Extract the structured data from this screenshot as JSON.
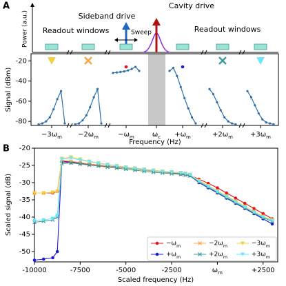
{
  "chart_data": [
    {
      "type": "segmented",
      "panel_label": "A",
      "schematic_labels": {
        "y_label": "Power (a.u.)",
        "readout_left": "Readout windows",
        "sideband": "Sideband drive",
        "cavity": "Cavity drive",
        "sweep": "Sweep",
        "readout_right": "Readout windows"
      },
      "y_label": "Signal (dBm)",
      "x_label": "Frequency (Hz)",
      "categories": [
        "−3ωm",
        "−2ωm",
        "−ωm",
        "ωc",
        "+ωm",
        "+2ωm",
        "+3ωm"
      ],
      "traces": [
        [
          -83,
          -82,
          -80,
          -76,
          -68,
          -58,
          -50,
          -82
        ],
        [
          -83,
          -82,
          -79,
          -74,
          -66,
          -56,
          -48,
          -82
        ],
        [
          -32,
          -31.5,
          -31,
          -30.5,
          -29.5,
          -28,
          -26,
          -30
        ],
        null,
        [
          -30,
          -27,
          -35,
          -46,
          -57,
          -67,
          -76,
          -82
        ],
        [
          -48,
          -53,
          -61,
          -69,
          -76,
          -80,
          -82,
          -83
        ],
        [
          -50,
          -56,
          -64,
          -72,
          -78,
          -81,
          -82,
          -83
        ]
      ],
      "trace_color": "#2f6ea8",
      "ylim": [
        -84,
        -13
      ],
      "yticks": [
        -20,
        -40,
        -60,
        -80
      ]
    },
    {
      "type": "line",
      "panel_label": "B",
      "y_label": "Scaled signal (dB)",
      "x_label": "Scaled frequency (Hz)",
      "x": [
        -10000,
        -9500,
        -9000,
        -8750,
        -8500,
        -8000,
        -7500,
        -7000,
        -6500,
        -6000,
        -5500,
        -5000,
        -4500,
        -4000,
        -3500,
        -3000,
        -2500,
        -2000,
        -1750,
        -1500,
        -1000,
        -500,
        0,
        500,
        1000,
        1500,
        2000,
        2500,
        3000
      ],
      "series": [
        {
          "name": "−ωm",
          "color": "#e8141b",
          "marker": "o",
          "values": [
            -33,
            -33,
            -33,
            -32.5,
            -24,
            -24.2,
            -24.5,
            -24.8,
            -25,
            -25.3,
            -25.5,
            -25.8,
            -26,
            -26.3,
            -26.6,
            -26.9,
            -27.2,
            -27.5,
            -27.7,
            -27.9,
            -29,
            -30.2,
            -31.5,
            -33,
            -34.5,
            -36,
            -37.5,
            -39,
            -40.5
          ]
        },
        {
          "name": "+ωm",
          "color": "#1c1cd6",
          "marker": "o",
          "values": [
            -52.5,
            -52.2,
            -51.8,
            -50,
            -23.8,
            -24,
            -24.3,
            -24.6,
            -24.9,
            -25.2,
            -25.4,
            -25.7,
            -26,
            -26.3,
            -26.6,
            -26.9,
            -27.1,
            -27.3,
            -27.6,
            -28,
            -30,
            -31.5,
            -33,
            -34.5,
            -36,
            -37.5,
            -39,
            -40.5,
            -42
          ]
        },
        {
          "name": "−2ωm",
          "color": "#f7a541",
          "marker": "x",
          "values": [
            -33,
            -33,
            -32.8,
            -32.5,
            -23.5,
            -23.8,
            -24.2,
            -24.6,
            -24.9,
            -25.2,
            -25.5,
            -25.8,
            -26.1,
            -26.4,
            -26.7,
            -26.9,
            -27.1,
            -27.3,
            -27.5,
            -27.8,
            -29.5,
            -31,
            -32.5,
            -34,
            -35.5,
            -37,
            -38.5,
            -40,
            -41
          ]
        },
        {
          "name": "+2ωm",
          "color": "#3a9c9a",
          "marker": "x",
          "values": [
            -41.5,
            -41.2,
            -40.8,
            -40,
            -24.5,
            -24.3,
            -24.6,
            -24.9,
            -25.2,
            -25.5,
            -25.8,
            -26.1,
            -26.4,
            -26.7,
            -27,
            -27.2,
            -27.4,
            -27.6,
            -27.8,
            -28,
            -29.8,
            -31.3,
            -32.8,
            -34.3,
            -35.8,
            -37.3,
            -38.8,
            -40.2,
            -41.2
          ]
        },
        {
          "name": "−3ωm",
          "color": "#f2d044",
          "marker": "v",
          "values": [
            -33,
            -33,
            -32.8,
            -32.5,
            -23,
            -22.6,
            -23.2,
            -23.8,
            -24.3,
            -24.7,
            -25.1,
            -25.5,
            -25.8,
            -26.1,
            -26.4,
            -26.7,
            -26.9,
            -27.1,
            -27.3,
            -27.6,
            -29.4,
            -30.9,
            -32.4,
            -33.9,
            -35.4,
            -36.9,
            -38.4,
            -39.8,
            -40.8
          ]
        },
        {
          "name": "+3ωm",
          "color": "#6fe6fa",
          "marker": "v",
          "values": [
            -41,
            -40.8,
            -40.4,
            -39.5,
            -23.2,
            -22.9,
            -23.4,
            -23.9,
            -24.4,
            -24.8,
            -25.2,
            -25.6,
            -25.9,
            -26.2,
            -26.5,
            -26.8,
            -27,
            -27.2,
            -27.4,
            -27.7,
            -29.6,
            -31.1,
            -32.6,
            -34.1,
            -35.6,
            -37.1,
            -38.6,
            -40,
            -41
          ]
        }
      ],
      "xlim": [
        -10000,
        3300
      ],
      "ylim": [
        -53,
        -20
      ],
      "xticks": [
        -10000,
        -7500,
        -5000,
        -2500,
        {
          "value": 0,
          "label": "ωm"
        },
        {
          "value": 2500,
          "label": "+2500"
        }
      ],
      "yticks": [
        -20,
        -25,
        -30,
        -35,
        -40,
        -45,
        -50
      ],
      "legend": "lower right"
    }
  ]
}
